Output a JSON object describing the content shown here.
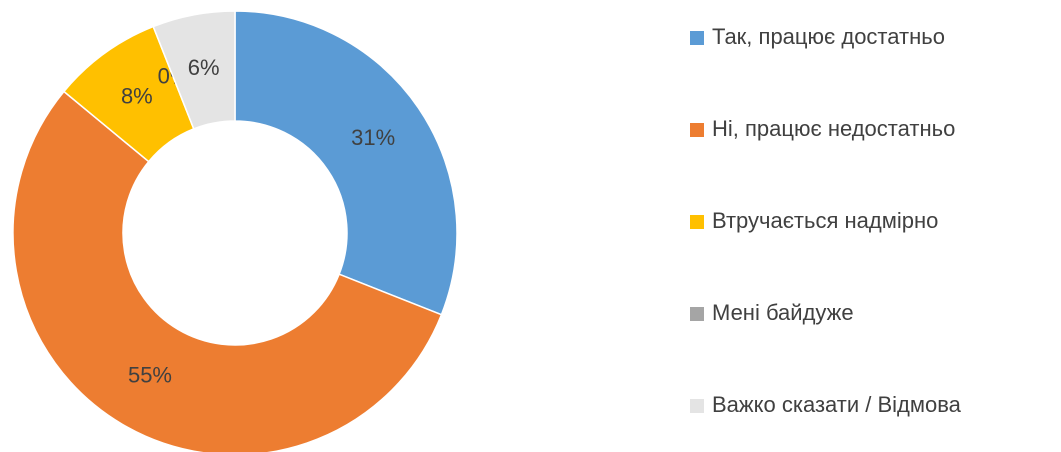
{
  "chart_data": {
    "type": "donut",
    "categories": [
      "Так, працює достатньо",
      "Ні, працює недостатньо",
      "Втручається надмірно",
      "Мені байдуже",
      "Важко сказати / Відмова"
    ],
    "values": [
      31,
      55,
      8,
      0,
      6
    ],
    "value_labels": [
      "31%",
      "55%",
      "8%",
      "0%",
      "6%"
    ],
    "colors": [
      "#5b9bd5",
      "#ed7d31",
      "#ffc000",
      "#a5a5a5",
      "#e4e4e4"
    ],
    "legend": "right"
  }
}
